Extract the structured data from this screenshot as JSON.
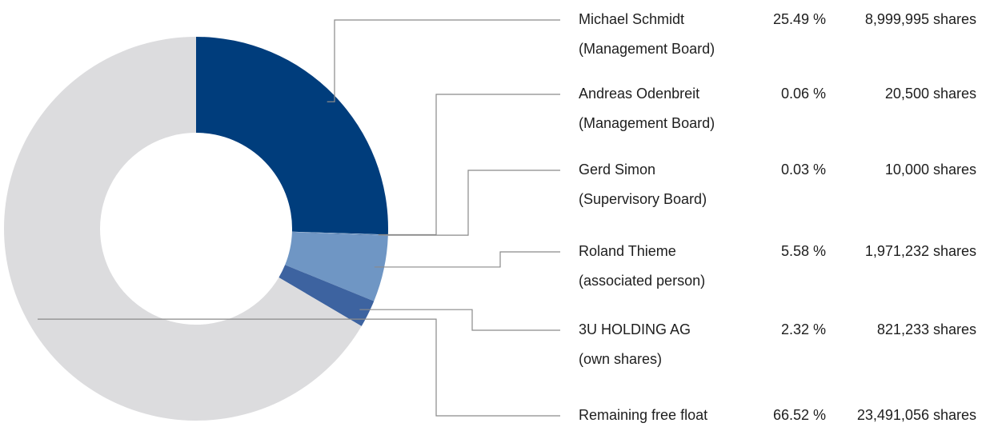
{
  "chart_data": {
    "type": "pie",
    "donut": true,
    "categories": [
      "Michael Schmidt",
      "Andreas Odenbreit",
      "Gerd Simon",
      "Roland Thieme",
      "3U HOLDING AG",
      "Remaining free float"
    ],
    "roles": [
      "(Management Board)",
      "(Management Board)",
      "(Supervisory Board)",
      "(associated person)",
      "(own shares)",
      null
    ],
    "values": [
      25.49,
      0.06,
      0.03,
      5.58,
      2.32,
      66.52
    ],
    "value_labels": [
      "25.49 %",
      "0.06 %",
      "0.03 %",
      "5.58 %",
      "2.32 %",
      "66.52 %"
    ],
    "shares_labels": [
      "8,999,995 shares",
      "20,500 shares",
      "10,000 shares",
      "1,971,232 shares",
      "821,233 shares",
      "23,491,056 shares"
    ],
    "colors": [
      "#003d7c",
      "#a9c4e4",
      "#0f3a78",
      "#6f96c4",
      "#3d63a0",
      "#dcdcde"
    ]
  }
}
